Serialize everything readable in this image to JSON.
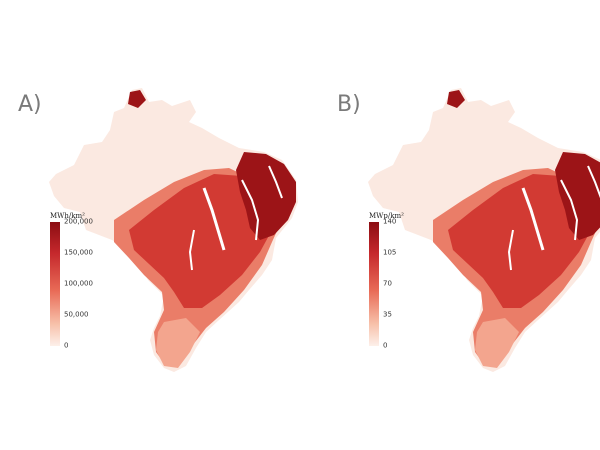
{
  "panels": [
    {
      "label": "A)",
      "legend_unit": "MWh/km²",
      "ticks": [
        "200,000",
        "150,000",
        "100,000",
        "50,000",
        "0"
      ],
      "scale_min": 0,
      "scale_max": 200000
    },
    {
      "label": "B)",
      "legend_unit": "MWp/km²",
      "ticks": [
        "140",
        "105",
        "70",
        "35",
        "0"
      ],
      "scale_min": 0,
      "scale_max": 140
    }
  ],
  "colors": {
    "low": "#fdf0ea",
    "mid_low": "#f7c0a9",
    "mid": "#e86a56",
    "high": "#c5282c",
    "max": "#8b0d12",
    "water": "#ffffff",
    "border": "#d9c8c0"
  }
}
